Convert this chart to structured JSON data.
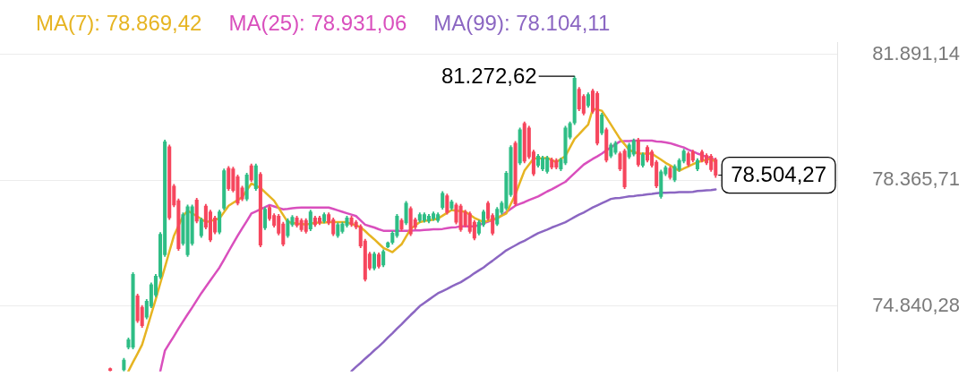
{
  "chart_data": {
    "type": "candlestick",
    "categories": [
      null,
      null,
      null,
      null,
      null,
      null,
      null,
      null,
      null,
      null,
      null,
      null,
      null,
      null,
      null,
      null,
      null,
      null,
      null,
      null,
      null,
      null,
      null,
      null,
      null,
      null,
      null,
      null,
      null,
      null,
      null,
      null,
      null,
      null,
      null,
      null,
      null,
      null,
      null,
      null,
      null,
      null,
      null,
      null,
      null,
      null,
      null,
      null,
      null,
      null,
      null,
      null,
      null,
      null,
      null,
      null,
      null,
      null,
      null,
      null,
      null,
      null,
      null,
      null,
      null,
      null,
      null,
      null,
      null,
      null,
      null,
      null,
      null,
      null,
      null,
      null,
      null,
      null,
      null,
      null,
      null,
      null,
      null,
      null,
      null,
      null,
      null,
      null,
      null,
      null,
      null,
      null,
      null,
      null,
      null,
      null,
      null,
      null,
      null,
      null,
      null,
      null,
      null,
      null,
      null,
      null,
      null,
      null,
      null,
      null,
      null,
      null,
      null,
      null,
      null,
      null,
      null,
      null,
      null,
      null,
      null,
      null,
      null,
      null,
      null,
      null,
      null,
      null,
      null,
      null,
      null,
      null,
      null,
      null
    ],
    "ohlc": [
      [
        73090,
        73110,
        73020,
        73040
      ],
      null,
      null,
      [
        73060,
        73380,
        73020,
        73330
      ],
      [
        73690,
        73950,
        73640,
        73900
      ],
      [
        73690,
        75780,
        73640,
        75730
      ],
      [
        75130,
        75180,
        74380,
        74430
      ],
      [
        74810,
        74860,
        74240,
        74290
      ],
      [
        74530,
        75030,
        74480,
        74980
      ],
      [
        74840,
        75490,
        74790,
        75440
      ],
      [
        75150,
        75730,
        75100,
        75680
      ],
      [
        75660,
        76900,
        75610,
        76850
      ],
      [
        76280,
        79490,
        76230,
        79440
      ],
      [
        79300,
        79350,
        77260,
        77310
      ],
      [
        78200,
        78250,
        77620,
        77670
      ],
      [
        77790,
        77840,
        76400,
        76450
      ],
      [
        76590,
        77450,
        76540,
        77400
      ],
      [
        76280,
        77670,
        76230,
        77620
      ],
      [
        76590,
        77670,
        76540,
        77620
      ],
      [
        77810,
        77860,
        77170,
        77220
      ],
      [
        76810,
        77310,
        76760,
        77260
      ],
      [
        77640,
        77690,
        77000,
        77050
      ],
      [
        77480,
        77530,
        76640,
        76690
      ],
      [
        77310,
        77360,
        76860,
        76910
      ],
      [
        76910,
        77530,
        76860,
        77480
      ],
      [
        77580,
        78680,
        77530,
        78630
      ],
      [
        78700,
        78750,
        78080,
        78130
      ],
      [
        78680,
        78730,
        78030,
        78080
      ],
      [
        78460,
        78510,
        77670,
        77720
      ],
      [
        78150,
        78200,
        77790,
        77840
      ],
      [
        77840,
        78560,
        77790,
        78510
      ],
      [
        78770,
        78820,
        78320,
        78370
      ],
      [
        78130,
        78820,
        78080,
        78770
      ],
      [
        78530,
        78580,
        76500,
        76550
      ],
      [
        77030,
        77600,
        76980,
        77550
      ],
      [
        77600,
        77650,
        77240,
        77290
      ],
      [
        77380,
        77430,
        77050,
        77100
      ],
      [
        77360,
        77410,
        76830,
        76880
      ],
      [
        77140,
        77190,
        76520,
        76570
      ],
      [
        76810,
        77290,
        76760,
        77240
      ],
      [
        77120,
        77380,
        77070,
        77330
      ],
      [
        77310,
        77360,
        77050,
        77100
      ],
      [
        77240,
        77290,
        76930,
        76980
      ],
      [
        77240,
        77290,
        76880,
        76930
      ],
      [
        77000,
        77530,
        76950,
        77480
      ],
      [
        77310,
        77360,
        77070,
        77120
      ],
      [
        77310,
        77360,
        77120,
        77170
      ],
      [
        77220,
        77450,
        77170,
        77400
      ],
      [
        77400,
        77450,
        77120,
        77170
      ],
      [
        77260,
        77310,
        76810,
        76860
      ],
      [
        76810,
        77170,
        76760,
        77120
      ],
      [
        76930,
        77190,
        76880,
        77140
      ],
      [
        77100,
        77360,
        77050,
        77310
      ],
      [
        77310,
        77360,
        77070,
        77120
      ],
      [
        77190,
        77240,
        77000,
        77050
      ],
      [
        77070,
        77120,
        76470,
        76520
      ],
      [
        76660,
        76710,
        75540,
        75590
      ],
      [
        76300,
        76350,
        75850,
        75900
      ],
      [
        75900,
        76350,
        75850,
        76300
      ],
      [
        76280,
        76330,
        75900,
        75950
      ],
      [
        75990,
        76420,
        75940,
        76370
      ],
      [
        76500,
        76640,
        76470,
        76610
      ],
      [
        76620,
        76930,
        76570,
        76880
      ],
      [
        76810,
        77410,
        76760,
        77360
      ],
      [
        77240,
        77290,
        76950,
        77000
      ],
      [
        77170,
        77770,
        77120,
        77720
      ],
      [
        77570,
        77620,
        76810,
        76860
      ],
      [
        77260,
        77310,
        77000,
        77050
      ],
      [
        77240,
        77450,
        77190,
        77400
      ],
      [
        77240,
        77450,
        77190,
        77400
      ],
      [
        77220,
        77410,
        77170,
        77360
      ],
      [
        77290,
        77480,
        77240,
        77430
      ],
      [
        77240,
        77450,
        77190,
        77400
      ],
      [
        77600,
        78050,
        77550,
        78000
      ],
      [
        77930,
        77980,
        77410,
        77460
      ],
      [
        77580,
        77810,
        77530,
        77760
      ],
      [
        77670,
        77720,
        77140,
        77190
      ],
      [
        77640,
        77690,
        76930,
        76980
      ],
      [
        77480,
        77530,
        77050,
        77100
      ],
      [
        77430,
        77480,
        76880,
        76930
      ],
      [
        77190,
        77240,
        76690,
        76740
      ],
      [
        76880,
        77240,
        76830,
        77190
      ],
      [
        77120,
        77530,
        77070,
        77480
      ],
      [
        77720,
        77770,
        77240,
        77290
      ],
      [
        77380,
        77430,
        76830,
        76880
      ],
      [
        77140,
        77600,
        77090,
        77550
      ],
      [
        77460,
        77770,
        77410,
        77720
      ],
      [
        77580,
        78610,
        77530,
        78560
      ],
      [
        77960,
        79330,
        77910,
        79280
      ],
      [
        79400,
        79450,
        77650,
        77700
      ],
      [
        78850,
        79830,
        78800,
        79780
      ],
      [
        79950,
        80000,
        78850,
        78900
      ],
      [
        79830,
        79880,
        78970,
        79020
      ],
      [
        79160,
        79210,
        78490,
        78540
      ],
      [
        78780,
        79090,
        78730,
        79040
      ],
      [
        78680,
        79040,
        78630,
        78990
      ],
      [
        78610,
        79040,
        78560,
        78990
      ],
      [
        78940,
        78990,
        78680,
        78730
      ],
      [
        78920,
        78970,
        78680,
        78730
      ],
      [
        78680,
        78990,
        78630,
        78940
      ],
      [
        78850,
        79880,
        78800,
        79830
      ],
      [
        79570,
        80000,
        79520,
        79950
      ],
      [
        79970,
        81272.62,
        79920,
        81220
      ],
      [
        80910,
        80960,
        80310,
        80360
      ],
      [
        80710,
        80760,
        80190,
        80240
      ],
      [
        80450,
        80810,
        80400,
        80760
      ],
      [
        80860,
        80910,
        80240,
        80290
      ],
      [
        80790,
        80840,
        79350,
        79400
      ],
      [
        79690,
        80240,
        79640,
        80190
      ],
      [
        79780,
        79830,
        78870,
        78920
      ],
      [
        79040,
        79400,
        78990,
        79350
      ],
      [
        79140,
        79450,
        79090,
        79400
      ],
      [
        79110,
        79160,
        78630,
        78680
      ],
      [
        79180,
        79230,
        78130,
        78180
      ],
      [
        79020,
        79400,
        78970,
        79350
      ],
      [
        79090,
        79520,
        79040,
        79470
      ],
      [
        79490,
        79540,
        78750,
        78800
      ],
      [
        78780,
        79130,
        78730,
        79080
      ],
      [
        79280,
        79330,
        78870,
        78920
      ],
      [
        79160,
        79210,
        78730,
        78780
      ],
      [
        78870,
        78920,
        78150,
        78200
      ],
      [
        77910,
        78650,
        77860,
        78600
      ],
      [
        78540,
        78770,
        78490,
        78720
      ],
      [
        78700,
        78750,
        78390,
        78440
      ],
      [
        78370,
        78800,
        78320,
        78750
      ],
      [
        78660,
        78970,
        78610,
        78920
      ],
      [
        78900,
        79230,
        78850,
        79180
      ],
      [
        79110,
        79160,
        78750,
        78800
      ],
      [
        79160,
        79210,
        78870,
        78920
      ],
      [
        78680,
        78970,
        78630,
        78920
      ],
      [
        79160,
        79210,
        78870,
        78920
      ],
      [
        79060,
        79110,
        78800,
        78850
      ],
      [
        79040,
        79090,
        78610,
        78660
      ],
      [
        78940,
        78990,
        78440,
        78504.27
      ]
    ],
    "colors": [
      "#f6465d",
      null,
      null,
      "#2ebd85",
      "#2ebd85",
      "#2ebd85",
      "#f6465d",
      "#f6465d",
      "#2ebd85",
      "#2ebd85",
      "#2ebd85",
      "#2ebd85",
      "#2ebd85",
      "#f6465d",
      "#f6465d",
      "#f6465d",
      "#2ebd85",
      "#2ebd85",
      "#2ebd85",
      "#f6465d",
      "#2ebd85",
      "#f6465d",
      "#f6465d",
      "#f6465d",
      "#2ebd85",
      "#2ebd85",
      "#f6465d",
      "#f6465d",
      "#f6465d",
      "#f6465d",
      "#2ebd85",
      "#f6465d",
      "#2ebd85",
      "#f6465d",
      "#2ebd85",
      "#f6465d",
      "#f6465d",
      "#f6465d",
      "#f6465d",
      "#2ebd85",
      "#2ebd85",
      "#f6465d",
      "#f6465d",
      "#f6465d",
      "#2ebd85",
      "#f6465d",
      "#f6465d",
      "#2ebd85",
      "#f6465d",
      "#f6465d",
      "#2ebd85",
      "#2ebd85",
      "#2ebd85",
      "#f6465d",
      "#f6465d",
      "#f6465d",
      "#f6465d",
      "#f6465d",
      "#2ebd85",
      "#f6465d",
      "#2ebd85",
      "#2ebd85",
      "#2ebd85",
      "#2ebd85",
      "#f6465d",
      "#2ebd85",
      "#f6465d",
      "#f6465d",
      "#2ebd85",
      "#2ebd85",
      "#2ebd85",
      "#2ebd85",
      "#2ebd85",
      "#2ebd85",
      "#f6465d",
      "#2ebd85",
      "#f6465d",
      "#f6465d",
      "#f6465d",
      "#f6465d",
      "#f6465d",
      "#2ebd85",
      "#2ebd85",
      "#f6465d",
      "#f6465d",
      "#2ebd85",
      "#2ebd85",
      "#2ebd85",
      "#2ebd85",
      "#f6465d",
      "#2ebd85",
      "#f6465d",
      "#f6465d",
      "#f6465d",
      "#2ebd85",
      "#2ebd85",
      "#2ebd85",
      "#f6465d",
      "#f6465d",
      "#2ebd85",
      "#2ebd85",
      "#2ebd85",
      "#2ebd85",
      "#f6465d",
      "#f6465d",
      "#2ebd85",
      "#f6465d",
      "#f6465d",
      "#2ebd85",
      "#f6465d",
      "#2ebd85",
      "#2ebd85",
      "#f6465d",
      "#f6465d",
      "#2ebd85",
      "#2ebd85",
      "#f6465d",
      "#2ebd85",
      "#f6465d",
      "#f6465d",
      "#f6465d",
      "#2ebd85",
      "#2ebd85",
      "#f6465d",
      "#2ebd85",
      "#2ebd85",
      "#2ebd85",
      "#f6465d",
      "#f6465d",
      "#2ebd85",
      "#f6465d",
      "#f6465d",
      "#f6465d",
      "#f6465d"
    ],
    "series": [
      {
        "name": "MA(7): 78.869,42",
        "type": "line",
        "color": "#e6b422",
        "values": [
          null,
          null,
          null,
          null,
          73020,
          73270,
          73510,
          73760,
          74180,
          74610,
          75030,
          75480,
          75920,
          76370,
          76810,
          77090,
          77360,
          77510,
          null,
          77360,
          77280,
          77190,
          77220,
          77260,
          77290,
          77470,
          77650,
          77730,
          77810,
          77890,
          78080,
          78270,
          78210,
          78150,
          78030,
          77910,
          77790,
          77590,
          77390,
          77190,
          77170,
          77150,
          77140,
          77120,
          77150,
          77170,
          77180,
          77180,
          77190,
          77190,
          77190,
          77190,
          77190,
          77140,
          77100,
          77050,
          76940,
          76820,
          76710,
          76590,
          76470,
          76410,
          76350,
          76460,
          76570,
          76790,
          77000,
          77100,
          77190,
          77220,
          77240,
          77260,
          77290,
          77370,
          77450,
          77530,
          77510,
          77500,
          77480,
          77400,
          77310,
          77250,
          77190,
          77230,
          77270,
          77310,
          77370,
          77430,
          77700,
          77960,
          78300,
          78630,
          78800,
          78970,
          78980,
          78980,
          78990,
          78930,
          78870,
          78960,
          79040,
          79280,
          79520,
          79650,
          79790,
          79920,
          80360,
          80340,
          80310,
          80120,
          79920,
          79720,
          79520,
          79370,
          79210,
          79160,
          79110,
          79110,
          79110,
          79110,
          79020,
          78940,
          78850,
          78780,
          78700,
          78630,
          78690,
          78750,
          78810,
          78870,
          78900,
          78940,
          78970,
          78869.42
        ]
      },
      {
        "name": "MA(25): 78.931,06",
        "type": "line",
        "color": "#d94fbd",
        "values": [
          null,
          null,
          null,
          null,
          null,
          null,
          null,
          null,
          null,
          null,
          null,
          73020,
          73590,
          73800,
          74000,
          74210,
          74410,
          74610,
          74800,
          75000,
          75200,
          75380,
          75560,
          75740,
          75920,
          76140,
          76370,
          76590,
          76810,
          77020,
          77220,
          77430,
          77490,
          77550,
          77610,
          77670,
          77630,
          77590,
          77550,
          77560,
          77580,
          77590,
          77600,
          77600,
          77600,
          77600,
          77600,
          77600,
          77600,
          77560,
          77520,
          77480,
          77440,
          77400,
          77360,
          77240,
          77120,
          77080,
          77040,
          76990,
          76950,
          76950,
          76950,
          76950,
          76950,
          76950,
          76950,
          76960,
          76960,
          76970,
          76980,
          76990,
          76990,
          77000,
          77020,
          77040,
          77050,
          77070,
          77070,
          77070,
          77070,
          77110,
          77160,
          77200,
          77250,
          77290,
          77380,
          77470,
          77560,
          77650,
          77700,
          77750,
          77810,
          77860,
          77910,
          77980,
          78050,
          78110,
          78180,
          78250,
          78320,
          78440,
          78560,
          78680,
          78800,
          78880,
          78960,
          79030,
          79110,
          79200,
          79280,
          79370,
          79450,
          79460,
          79460,
          79470,
          79470,
          79470,
          79470,
          79470,
          79450,
          79440,
          79420,
          79400,
          79360,
          79320,
          79280,
          79220,
          79170,
          79110,
          79070,
          79020,
          78980,
          78931.06
        ]
      },
      {
        "name": "MA(99): 78.104,11",
        "type": "line",
        "color": "#8b66c2",
        "values": [
          null,
          null,
          null,
          null,
          null,
          null,
          null,
          null,
          null,
          null,
          null,
          null,
          null,
          null,
          null,
          null,
          null,
          null,
          null,
          null,
          null,
          null,
          null,
          null,
          null,
          null,
          null,
          null,
          null,
          null,
          null,
          null,
          null,
          null,
          null,
          null,
          null,
          null,
          null,
          null,
          null,
          null,
          null,
          null,
          null,
          null,
          null,
          null,
          null,
          null,
          null,
          null,
          null,
          73020,
          73140,
          73250,
          73370,
          73480,
          73600,
          73710,
          73830,
          73960,
          74080,
          74210,
          74330,
          74460,
          74590,
          74710,
          74840,
          74930,
          75020,
          75110,
          75200,
          75260,
          75320,
          75390,
          75450,
          75510,
          75590,
          75670,
          75760,
          75840,
          75920,
          76020,
          76110,
          76210,
          76300,
          76400,
          76470,
          76540,
          76610,
          76670,
          76740,
          76810,
          76880,
          76930,
          76980,
          77040,
          77090,
          77140,
          77190,
          77260,
          77330,
          77400,
          77460,
          77530,
          77600,
          77660,
          77720,
          77780,
          77840,
          77860,
          77870,
          77890,
          77910,
          77920,
          77940,
          77950,
          77970,
          77980,
          78000,
          78010,
          78010,
          78020,
          78020,
          78030,
          78030,
          78030,
          78040,
          78060,
          78070,
          78080,
          78090,
          78104.11
        ]
      }
    ],
    "ylim": [
      73010,
      82230
    ],
    "yticks": [
      {
        "value": 74840.28,
        "label": "74.840,28"
      },
      {
        "value": 78365.71,
        "label": "78.365,71"
      },
      {
        "value": 81891.14,
        "label": "81.891,14"
      }
    ],
    "annotations": [
      "81.272,62",
      "78.504,27"
    ],
    "grid": "y",
    "legend": "top left",
    "tick_labels": "y",
    "marker": "none",
    "line_style": "solid"
  }
}
